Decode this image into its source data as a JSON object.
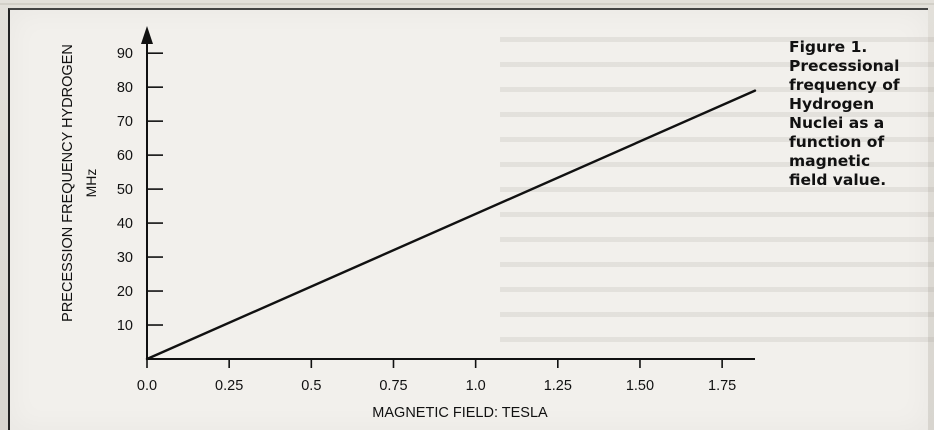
{
  "figure": {
    "caption_lines": [
      "Figure 1.",
      "Precessional",
      "frequency of",
      "Hydrogen",
      "Nuclei as a",
      "function of",
      "magnetic",
      "field value."
    ]
  },
  "chart_data": {
    "type": "line",
    "title": "",
    "xlabel": "MAGNETIC  FIELD:  TESLA",
    "ylabel_line1": "PRECESSION  FREQUENCY  HYDROGEN",
    "ylabel_line2": "MHz",
    "x_ticks": [
      "0.0",
      "0.25",
      "0.5",
      "0.75",
      "1.0",
      "1.25",
      "1.50",
      "1.75"
    ],
    "x_tick_values": [
      0,
      0.25,
      0.5,
      0.75,
      1.0,
      1.25,
      1.5,
      1.75
    ],
    "y_ticks": [
      "10",
      "20",
      "30",
      "40",
      "50",
      "60",
      "70",
      "80",
      "90"
    ],
    "y_tick_values": [
      10,
      20,
      30,
      40,
      50,
      60,
      70,
      80,
      90
    ],
    "xlim": [
      0,
      1.85
    ],
    "ylim": [
      0,
      98
    ],
    "grid": false,
    "series": [
      {
        "x": [
          0.0,
          1.85
        ],
        "y": [
          0,
          79
        ]
      }
    ],
    "colors": {
      "ink": "#111111"
    }
  }
}
